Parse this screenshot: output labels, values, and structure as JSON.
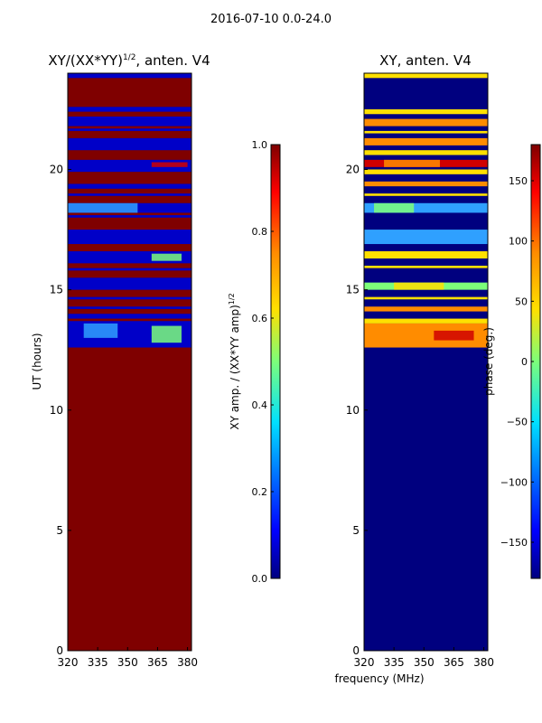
{
  "suptitle": "2016-07-10 0.0-24.0",
  "colors": {
    "bg": "#7f0000",
    "blue": "#0000c8",
    "navy": "#00007f",
    "cyan": "#2fa0ff",
    "yellow": "#ffe000",
    "orange": "#ff8c00",
    "red": "#d00000",
    "green": "#7cff7a"
  },
  "chart_data": [
    {
      "type": "heatmap",
      "title": "XY/(XX*YY)",
      "title_exp": "1/2",
      "title_suffix": ", anten. V4",
      "xlabel": "",
      "ylabel": "UT (hours)",
      "xlim": [
        320,
        382
      ],
      "ylim": [
        0,
        24
      ],
      "xticks": [
        320,
        335,
        350,
        365,
        380
      ],
      "yticks": [
        0,
        5,
        10,
        15,
        20
      ],
      "background": "#7f0000",
      "bands": [
        {
          "y0": 12.6,
          "y1": 13.7,
          "color": "#0000c8"
        },
        {
          "y0": 13.8,
          "y1": 14.0,
          "color": "#0000c8"
        },
        {
          "y0": 14.2,
          "y1": 14.3,
          "color": "#0000c8"
        },
        {
          "y0": 14.6,
          "y1": 14.7,
          "color": "#0000c8"
        },
        {
          "y0": 15.0,
          "y1": 15.5,
          "color": "#0000c8"
        },
        {
          "y0": 15.8,
          "y1": 15.9,
          "color": "#0000c8"
        },
        {
          "y0": 16.1,
          "y1": 16.6,
          "color": "#0000c8"
        },
        {
          "y0": 16.9,
          "y1": 17.5,
          "color": "#0000c8"
        },
        {
          "y0": 18.0,
          "y1": 18.1,
          "color": "#0000c8"
        },
        {
          "y0": 18.2,
          "y1": 18.6,
          "color": "#0000c8"
        },
        {
          "y0": 18.9,
          "y1": 19.0,
          "color": "#0000c8"
        },
        {
          "y0": 19.2,
          "y1": 19.4,
          "color": "#0000c8"
        },
        {
          "y0": 19.9,
          "y1": 20.4,
          "color": "#0000c8"
        },
        {
          "y0": 20.8,
          "y1": 21.3,
          "color": "#0000c8"
        },
        {
          "y0": 21.6,
          "y1": 21.7,
          "color": "#0000c8"
        },
        {
          "y0": 21.8,
          "y1": 22.2,
          "color": "#0000c8"
        },
        {
          "y0": 22.4,
          "y1": 22.6,
          "color": "#0000c8"
        },
        {
          "y0": 23.8,
          "y1": 24.0,
          "color": "#0000c8"
        }
      ],
      "accents": [
        {
          "y0": 13.0,
          "y1": 13.6,
          "color": "#2fa0ff",
          "x0": 328,
          "x1": 345
        },
        {
          "y0": 18.2,
          "y1": 18.6,
          "color": "#2fa0ff",
          "x0": 320,
          "x1": 355
        },
        {
          "y0": 20.1,
          "y1": 20.3,
          "color": "#d00000",
          "x0": 362,
          "x1": 380
        },
        {
          "y0": 16.2,
          "y1": 16.5,
          "color": "#7cff7a",
          "x0": 362,
          "x1": 377
        },
        {
          "y0": 12.8,
          "y1": 13.5,
          "color": "#7cff7a",
          "x0": 362,
          "x1": 377
        }
      ]
    },
    {
      "type": "heatmap",
      "title": "XY, anten. V4",
      "xlabel": "frequency (MHz)",
      "ylabel": "",
      "xlim": [
        320,
        382
      ],
      "ylim": [
        0,
        24
      ],
      "xticks": [
        320,
        335,
        350,
        365,
        380
      ],
      "yticks": [
        0,
        5,
        10,
        15,
        20
      ],
      "background": "#00007f",
      "bands": [
        {
          "y0": 12.6,
          "y1": 13.6,
          "color": "#ff8c00"
        },
        {
          "y0": 13.6,
          "y1": 13.8,
          "color": "#ffe000"
        },
        {
          "y0": 14.1,
          "y1": 14.3,
          "color": "#ff8c00"
        },
        {
          "y0": 14.6,
          "y1": 14.7,
          "color": "#ffe000"
        },
        {
          "y0": 15.0,
          "y1": 15.3,
          "color": "#7cff7a"
        },
        {
          "y0": 15.9,
          "y1": 16.0,
          "color": "#ffe000"
        },
        {
          "y0": 16.3,
          "y1": 16.6,
          "color": "#ffe000"
        },
        {
          "y0": 16.9,
          "y1": 17.5,
          "color": "#2fa0ff"
        },
        {
          "y0": 18.2,
          "y1": 18.6,
          "color": "#2fa0ff"
        },
        {
          "y0": 18.9,
          "y1": 19.0,
          "color": "#ffe000"
        },
        {
          "y0": 19.3,
          "y1": 19.5,
          "color": "#ff8c00"
        },
        {
          "y0": 19.8,
          "y1": 20.0,
          "color": "#ffe000"
        },
        {
          "y0": 20.1,
          "y1": 20.4,
          "color": "#d00000"
        },
        {
          "y0": 20.6,
          "y1": 20.8,
          "color": "#ffe000"
        },
        {
          "y0": 21.0,
          "y1": 21.3,
          "color": "#ff8c00"
        },
        {
          "y0": 21.5,
          "y1": 21.6,
          "color": "#ffe000"
        },
        {
          "y0": 21.8,
          "y1": 22.1,
          "color": "#ff8c00"
        },
        {
          "y0": 22.3,
          "y1": 22.5,
          "color": "#ffe000"
        },
        {
          "y0": 23.8,
          "y1": 24.0,
          "color": "#ffe000"
        }
      ],
      "accents": [
        {
          "y0": 12.9,
          "y1": 13.3,
          "color": "#d00000",
          "x0": 355,
          "x1": 375
        },
        {
          "y0": 18.2,
          "y1": 18.6,
          "color": "#7cff7a",
          "x0": 325,
          "x1": 345
        },
        {
          "y0": 15.0,
          "y1": 15.3,
          "color": "#ffe000",
          "x0": 335,
          "x1": 360
        },
        {
          "y0": 20.1,
          "y1": 20.4,
          "color": "#ff8c00",
          "x0": 330,
          "x1": 358
        }
      ]
    }
  ],
  "colorbars": [
    {
      "label": "XY amp. / (XX*YY amp)",
      "label_exp": "1/2",
      "ticks": [
        "0.0",
        "0.2",
        "0.4",
        "0.6",
        "0.8",
        "1.0"
      ],
      "tick_values": [
        0.0,
        0.2,
        0.4,
        0.6,
        0.8,
        1.0
      ],
      "range": [
        0,
        1
      ]
    },
    {
      "label": "phase (deg.)",
      "ticks": [
        "−150",
        "−100",
        "−50",
        "0",
        "50",
        "100",
        "150"
      ],
      "tick_values": [
        -150,
        -100,
        -50,
        0,
        50,
        100,
        150
      ],
      "range": [
        -180,
        180
      ]
    }
  ]
}
